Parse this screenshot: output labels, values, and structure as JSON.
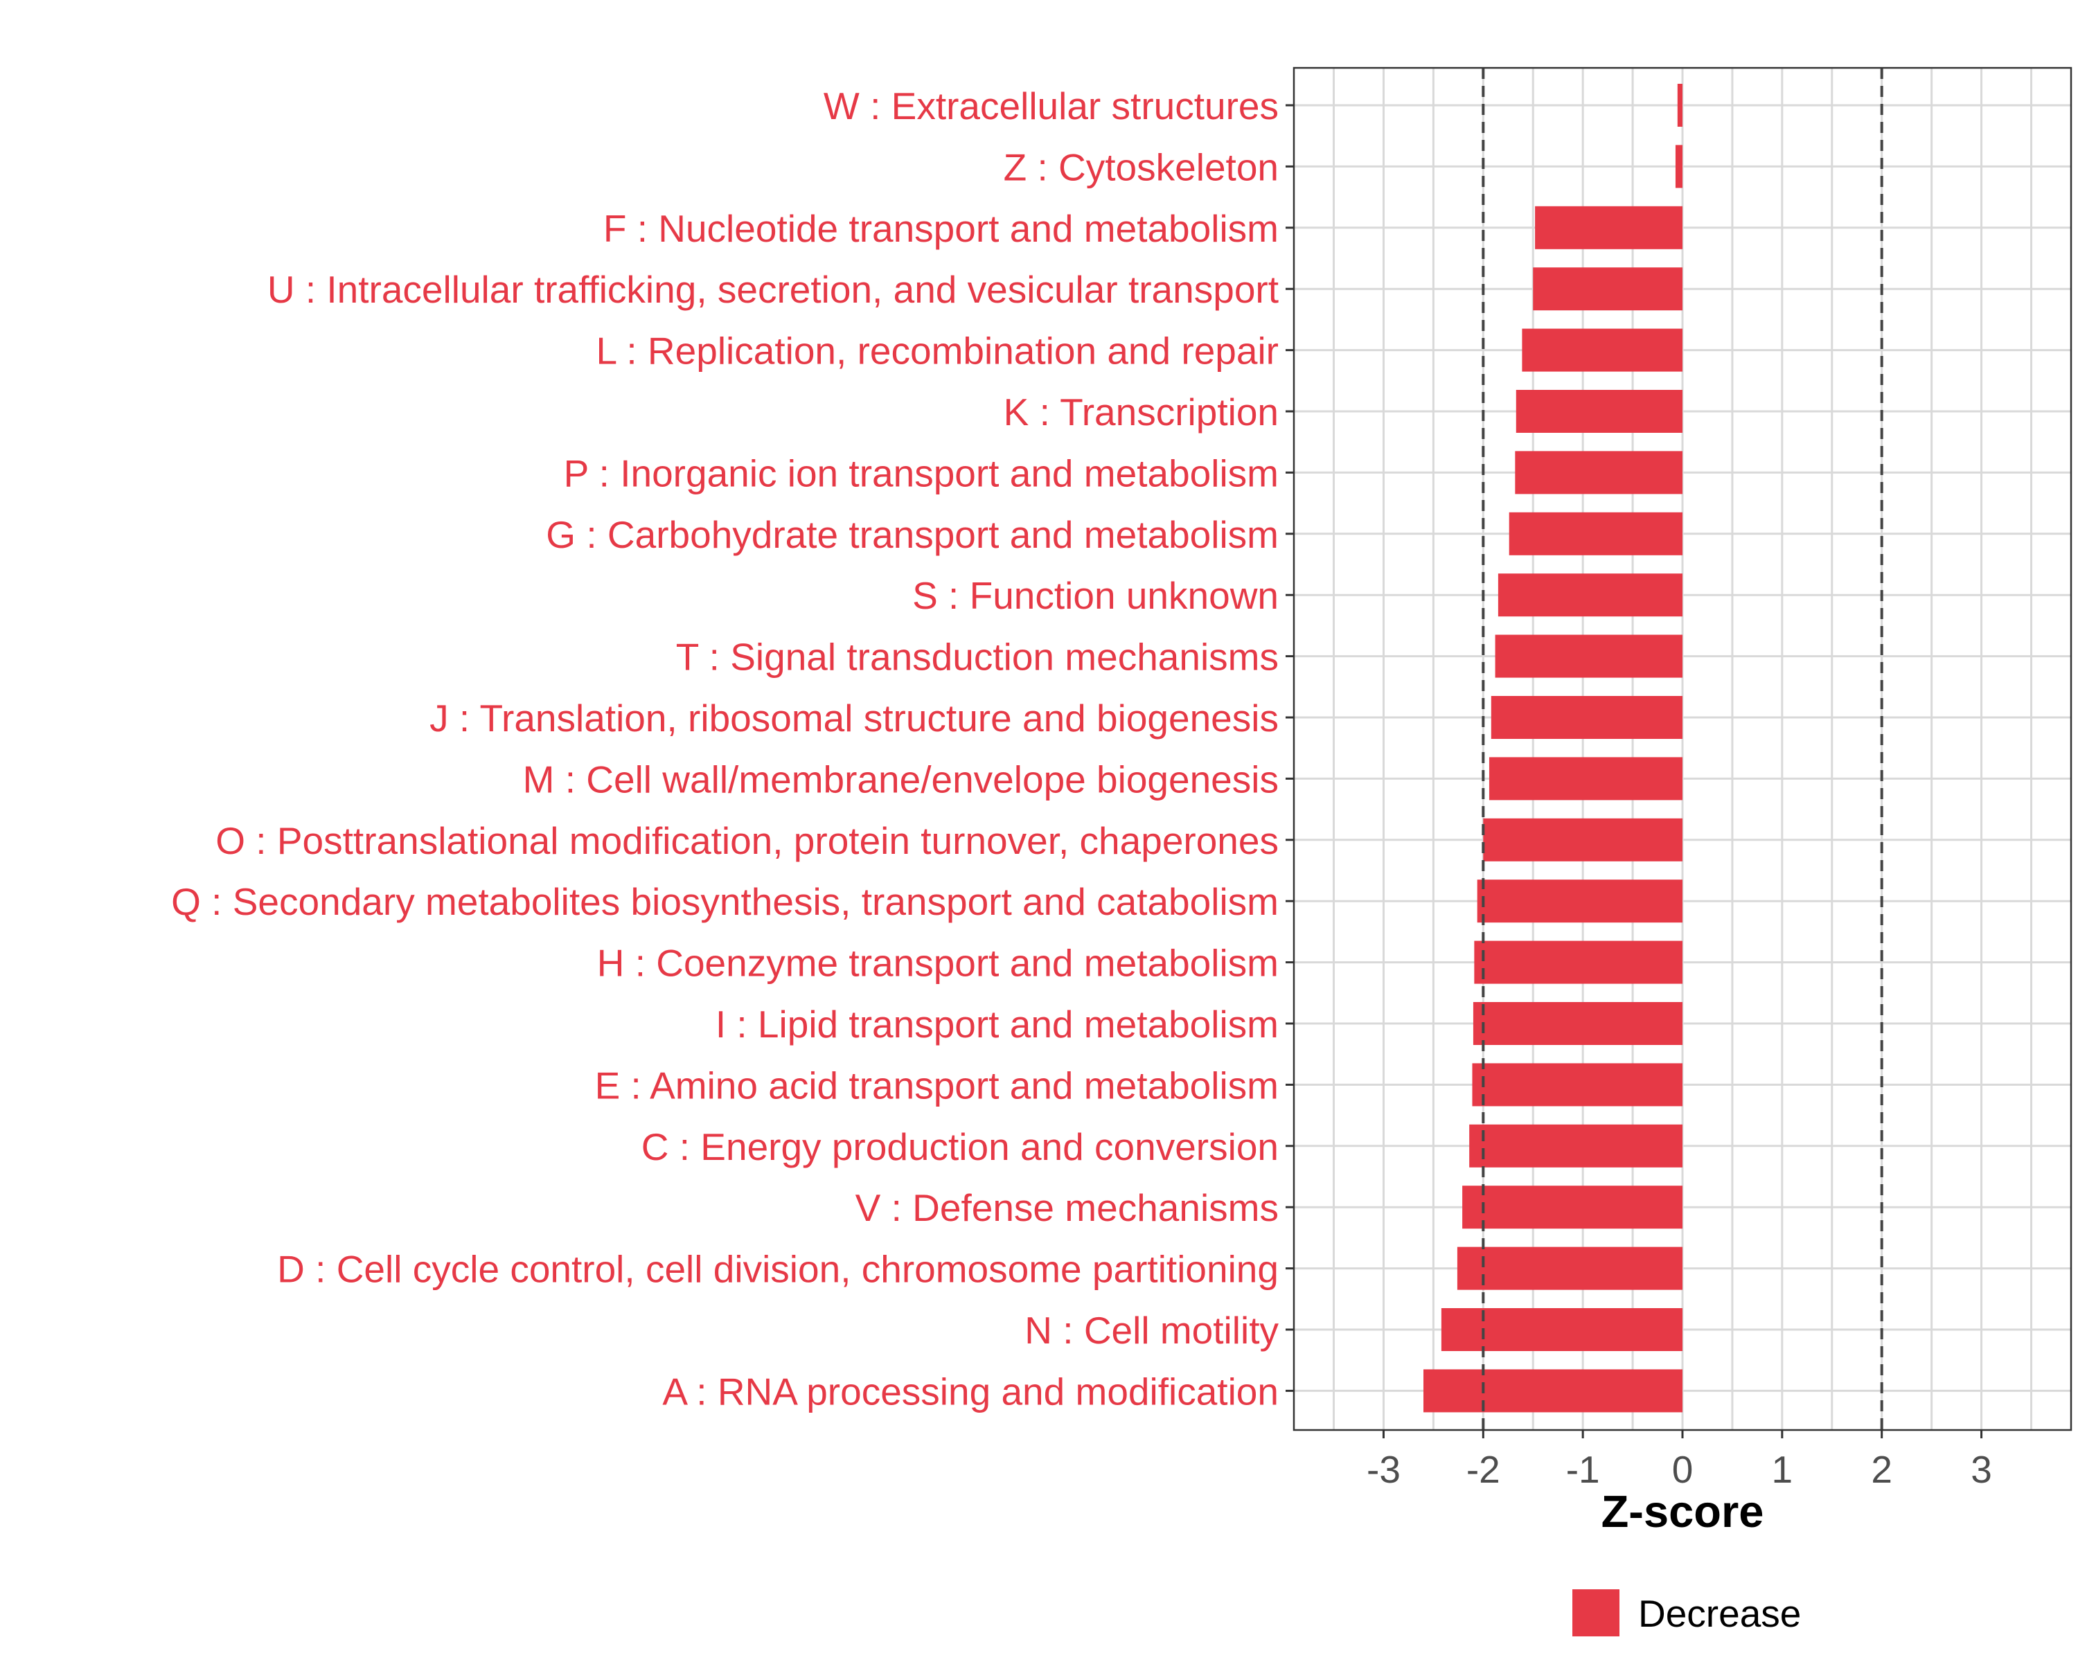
{
  "chart_data": {
    "type": "bar",
    "orientation": "horizontal",
    "categories": [
      "W : Extracellular structures",
      "Z : Cytoskeleton",
      "F : Nucleotide transport and metabolism",
      "U : Intracellular trafficking, secretion, and vesicular transport",
      "L : Replication, recombination and repair",
      "K : Transcription",
      "P : Inorganic ion transport and metabolism",
      "G : Carbohydrate transport and metabolism",
      "S : Function unknown",
      "T : Signal transduction mechanisms",
      "J : Translation, ribosomal structure and biogenesis",
      "M : Cell wall/membrane/envelope biogenesis",
      "O : Posttranslational modification, protein turnover, chaperones",
      "Q : Secondary metabolites biosynthesis, transport and catabolism",
      "H : Coenzyme transport and metabolism",
      "I : Lipid transport and metabolism",
      "E : Amino acid transport and metabolism",
      "C : Energy production and conversion",
      "V : Defense mechanisms",
      "D : Cell cycle control, cell division, chromosome partitioning",
      "N : Cell motility",
      "A : RNA processing and modification"
    ],
    "series": [
      {
        "name": "Decrease",
        "color": "#e63946",
        "values": [
          -0.05,
          -0.07,
          -1.48,
          -1.5,
          -1.61,
          -1.67,
          -1.68,
          -1.74,
          -1.85,
          -1.88,
          -1.92,
          -1.94,
          -2.0,
          -2.06,
          -2.09,
          -2.1,
          -2.11,
          -2.14,
          -2.21,
          -2.26,
          -2.42,
          -2.6
        ]
      }
    ],
    "xlabel": "Z-score",
    "ylabel": "",
    "xlim": [
      -3.9,
      3.9
    ],
    "xticks": [
      -3,
      -2,
      -1,
      0,
      1,
      2,
      3
    ],
    "reference_lines": [
      -2,
      2
    ],
    "grid": true,
    "legend_position": "bottom",
    "label_color": "#e63946"
  }
}
